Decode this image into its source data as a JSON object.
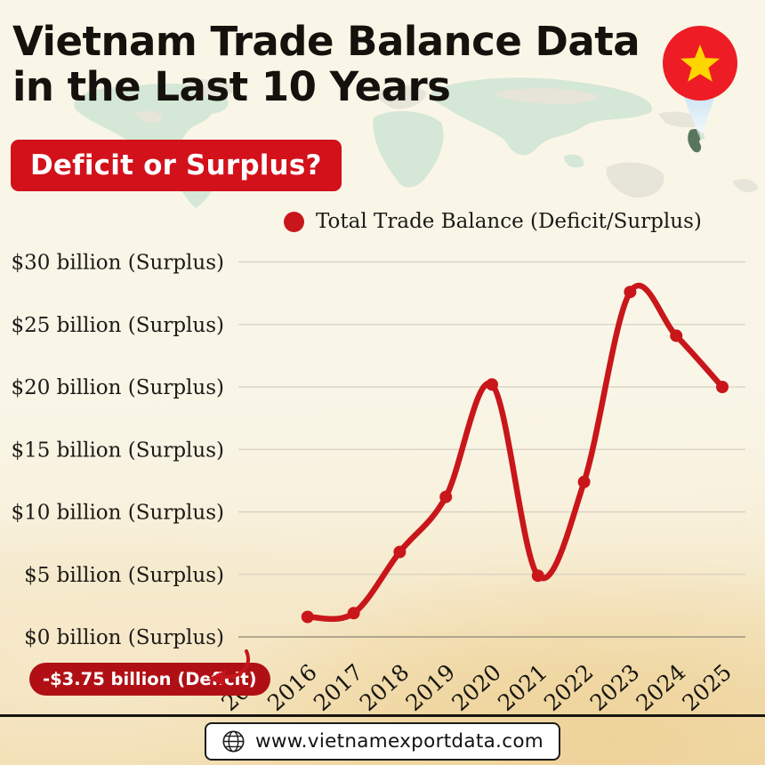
{
  "header": {
    "title_line1": "Vietnam Trade Balance Data",
    "title_line2": "in the Last 10 Years",
    "subtitle_badge": "Deficit or Surplus?"
  },
  "legend": {
    "label": "Total Trade Balance (Deficit/Surplus)"
  },
  "chart_data": {
    "type": "line",
    "title": "Vietnam Trade Balance Data in the Last 10 Years",
    "categories": [
      2015,
      2016,
      2017,
      2018,
      2019,
      2020,
      2021,
      2022,
      2023,
      2024,
      2025
    ],
    "series": [
      {
        "name": "Total Trade Balance (Deficit/Surplus)",
        "values": [
          -3.75,
          1.6,
          1.9,
          6.8,
          11.2,
          20.2,
          4.9,
          12.4,
          27.6,
          24.1,
          20.0
        ]
      }
    ],
    "units": "USD billion",
    "ylim": [
      0,
      30
    ],
    "y_ticks": [
      {
        "value": 0,
        "label": "$0 billion (Surplus)"
      },
      {
        "value": 5,
        "label": "$5 billion (Surplus)"
      },
      {
        "value": 10,
        "label": "$10 billion (Surplus)"
      },
      {
        "value": 15,
        "label": "$15 billion (Surplus)"
      },
      {
        "value": 20,
        "label": "$20 billion (Surplus)"
      },
      {
        "value": 25,
        "label": "$25 billion (Surplus)"
      },
      {
        "value": 30,
        "label": "$30 billion (Surplus)"
      }
    ],
    "grid": true,
    "legend_position": "top",
    "line_color": "#c9161a",
    "annotation": {
      "label": "-$3.75 billion (Deficit)",
      "target_year": 2015,
      "note": "2015 value is below the axis range and is shown as a callout badge with an arrow"
    }
  },
  "footer": {
    "website": "www.vietnamexportdata.com"
  },
  "icons": {
    "location_pin": "vietnam-flag-location-pin",
    "star": "yellow-star",
    "globe": "globe"
  },
  "colors": {
    "accent_red": "#d2111b",
    "deficit_badge_red": "#b01015",
    "line_red": "#c9161a",
    "flag_red": "#ee1c25",
    "star_yellow": "#ffd500",
    "background_cream": "#f9f6e8",
    "background_tan": "#f1dcae",
    "gridline": "#d6d0c0",
    "text_black": "#15110d"
  }
}
